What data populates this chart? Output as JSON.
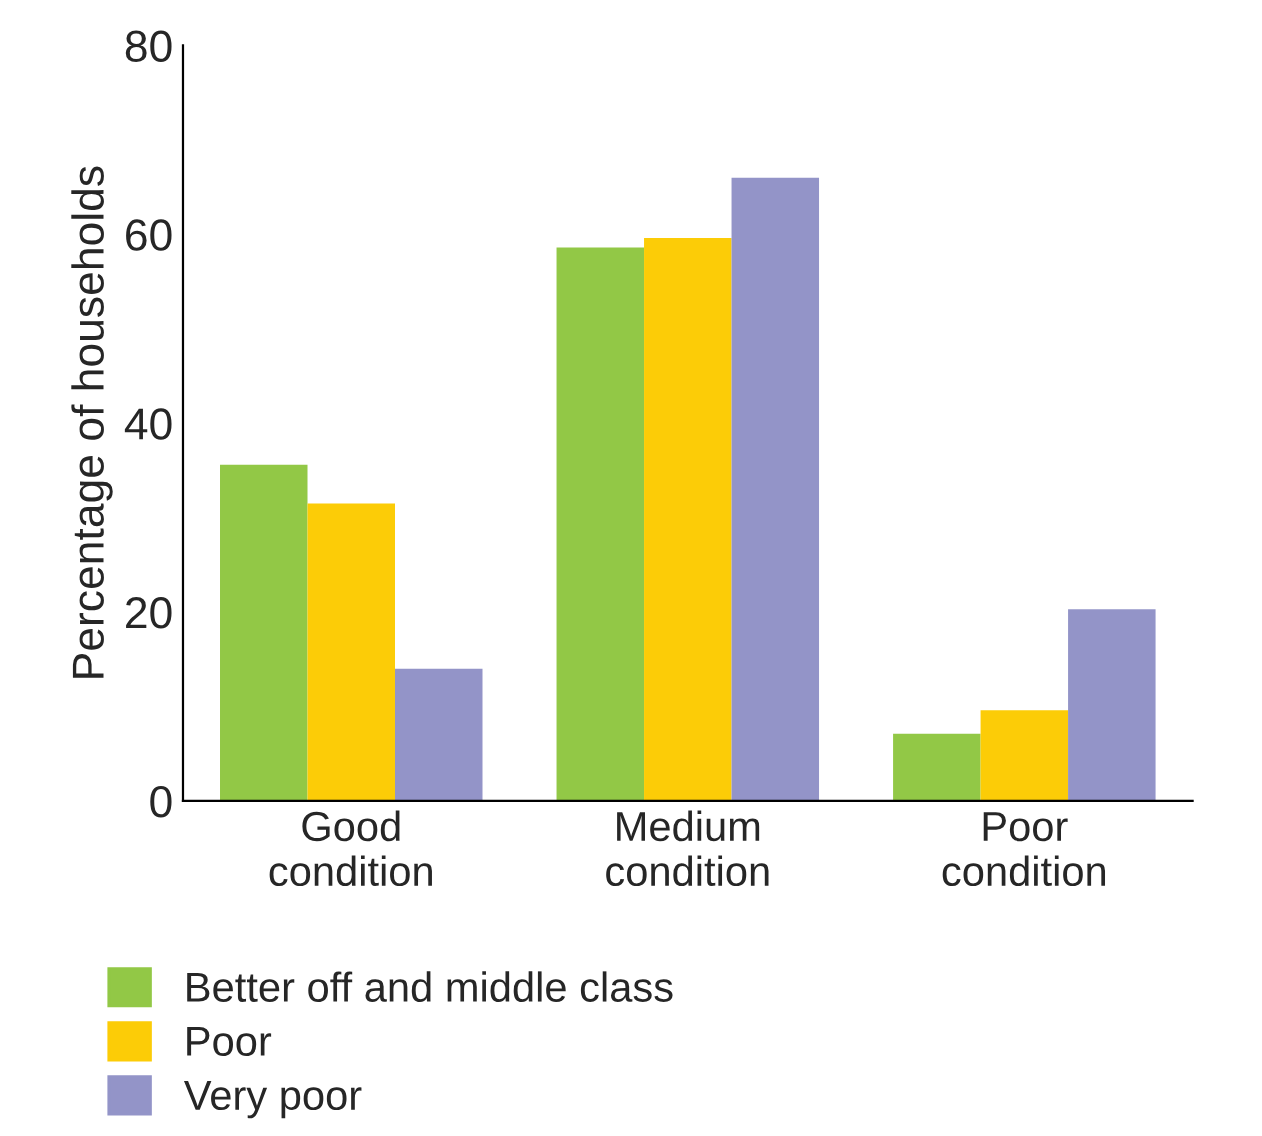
{
  "chart_data": {
    "type": "bar",
    "ylabel": "Percentage of households",
    "categories": [
      "Good\ncondition",
      "Medium\ncondition",
      "Poor\ncondition"
    ],
    "series": [
      {
        "name": "Better off and middle class",
        "color": "#92c846",
        "values": [
          35.6,
          58.6,
          7.1
        ]
      },
      {
        "name": "Poor",
        "color": "#fccc07",
        "values": [
          31.5,
          59.6,
          9.6
        ]
      },
      {
        "name": "Very poor",
        "color": "#9394c8",
        "values": [
          14.0,
          66.0,
          20.3
        ]
      }
    ],
    "ylim": [
      0,
      80
    ],
    "yticks": [
      0,
      20,
      40,
      60,
      80
    ],
    "grid": false,
    "legend": "bottom left"
  }
}
